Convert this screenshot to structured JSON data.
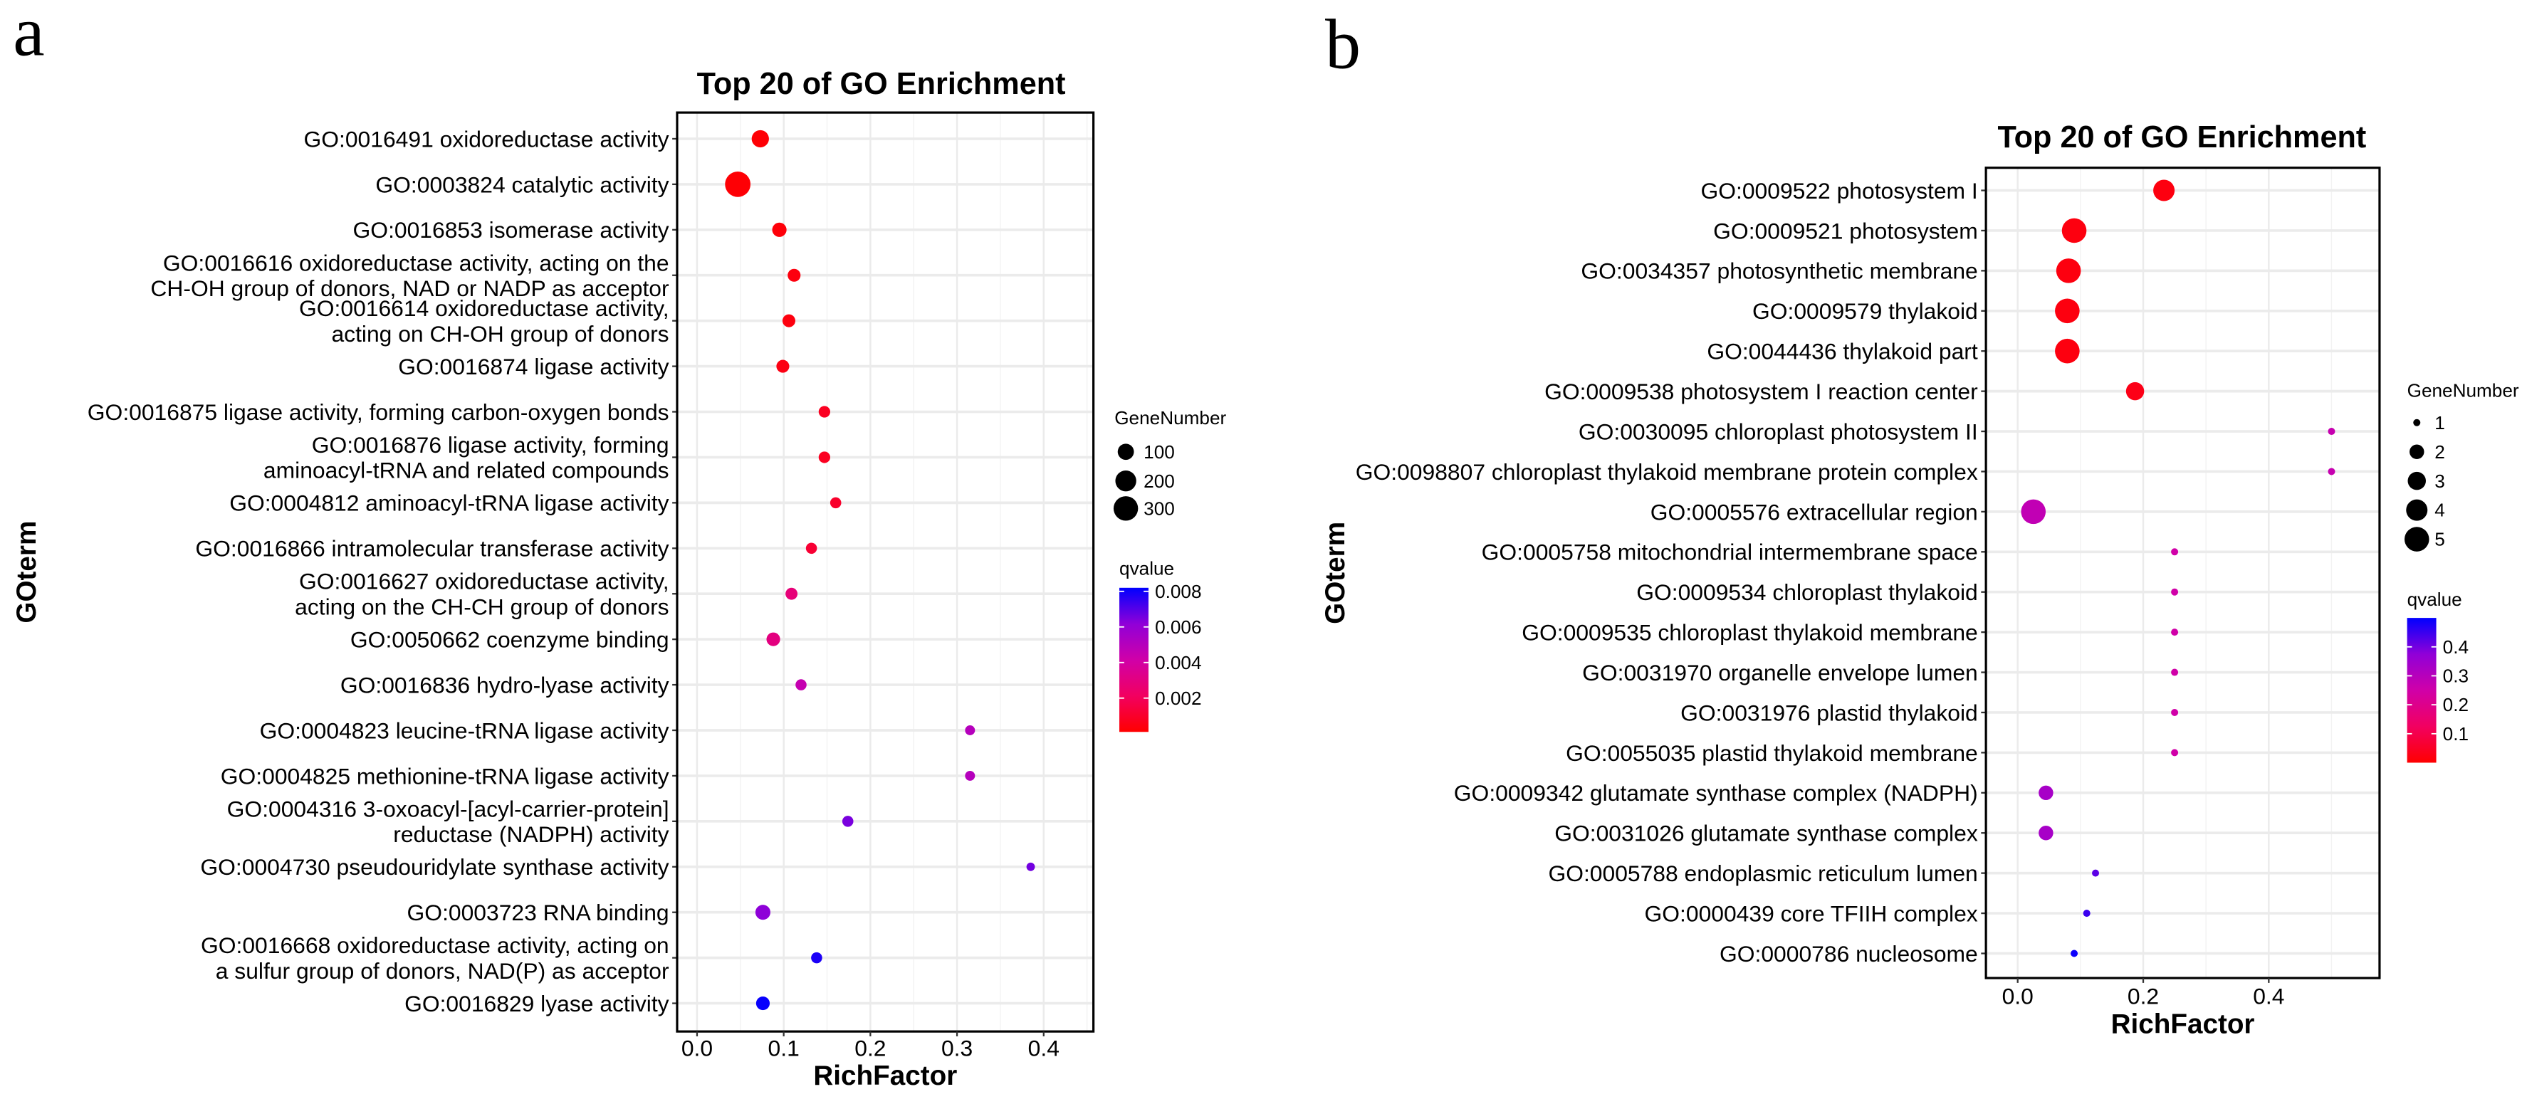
{
  "chart_data": [
    {
      "panel": "a",
      "type": "scatter",
      "title": "Top 20 of GO Enrichment",
      "xlabel": "RichFactor",
      "ylabel": "GOterm",
      "xlim": [
        -0.02,
        0.46
      ],
      "xticks": [
        "0.0",
        "0.1",
        "0.2",
        "0.3",
        "0.4"
      ],
      "xtick_values": [
        0,
        0.1,
        0.2,
        0.3,
        0.4
      ],
      "grid": true,
      "size_legend": {
        "title": "GeneNumber",
        "values": [
          100,
          200,
          300
        ],
        "labels": [
          "100",
          "200",
          "300"
        ]
      },
      "color_legend": {
        "title": "qvalue",
        "range": [
          0.0001,
          0.0082
        ],
        "ticks": [
          "0.008",
          "0.006",
          "0.004",
          "0.002"
        ],
        "tick_values": [
          0.008,
          0.006,
          0.004,
          0.002
        ],
        "low_color": "#FF0000",
        "high_color": "#0000FF"
      },
      "terms": [
        {
          "label": [
            "GO:0016491 oxidoreductase activity"
          ],
          "rich_factor": 0.073,
          "gene_number": 120,
          "qvalue": 0.0002
        },
        {
          "label": [
            "GO:0003824 catalytic activity"
          ],
          "rich_factor": 0.047,
          "gene_number": 330,
          "qvalue": 0.0002
        },
        {
          "label": [
            "GO:0016853 isomerase activity"
          ],
          "rich_factor": 0.095,
          "gene_number": 70,
          "qvalue": 0.0003
        },
        {
          "label": [
            "GO:0016616 oxidoreductase activity, acting on the",
            "CH-OH group of donors, NAD or NADP as acceptor"
          ],
          "rich_factor": 0.112,
          "gene_number": 50,
          "qvalue": 0.0004
        },
        {
          "label": [
            "GO:0016614 oxidoreductase activity,",
            "acting on CH-OH group of donors"
          ],
          "rich_factor": 0.106,
          "gene_number": 50,
          "qvalue": 0.0004
        },
        {
          "label": [
            "GO:0016874 ligase activity"
          ],
          "rich_factor": 0.099,
          "gene_number": 50,
          "qvalue": 0.0005
        },
        {
          "label": [
            "GO:0016875 ligase activity, forming carbon-oxygen bonds"
          ],
          "rich_factor": 0.147,
          "gene_number": 35,
          "qvalue": 0.0008
        },
        {
          "label": [
            "GO:0016876 ligase activity, forming",
            "aminoacyl-tRNA and related compounds"
          ],
          "rich_factor": 0.147,
          "gene_number": 35,
          "qvalue": 0.0008
        },
        {
          "label": [
            "GO:0004812 aminoacyl-tRNA ligase activity"
          ],
          "rich_factor": 0.16,
          "gene_number": 30,
          "qvalue": 0.001
        },
        {
          "label": [
            "GO:0016866 intramolecular transferase activity"
          ],
          "rich_factor": 0.132,
          "gene_number": 30,
          "qvalue": 0.0012
        },
        {
          "label": [
            "GO:0016627 oxidoreductase activity,",
            "acting on the CH-CH group of donors"
          ],
          "rich_factor": 0.109,
          "gene_number": 40,
          "qvalue": 0.0028
        },
        {
          "label": [
            "GO:0050662 coenzyme binding"
          ],
          "rich_factor": 0.088,
          "gene_number": 60,
          "qvalue": 0.003
        },
        {
          "label": [
            "GO:0016836 hydro-lyase activity"
          ],
          "rich_factor": 0.12,
          "gene_number": 30,
          "qvalue": 0.0045
        },
        {
          "label": [
            "GO:0004823 leucine-tRNA ligase activity"
          ],
          "rich_factor": 0.315,
          "gene_number": 20,
          "qvalue": 0.005
        },
        {
          "label": [
            "GO:0004825 methionine-tRNA ligase activity"
          ],
          "rich_factor": 0.315,
          "gene_number": 20,
          "qvalue": 0.005
        },
        {
          "label": [
            "GO:0004316 3-oxoacyl-[acyl-carrier-protein]",
            "reductase (NADPH) activity"
          ],
          "rich_factor": 0.174,
          "gene_number": 30,
          "qvalue": 0.0065
        },
        {
          "label": [
            "GO:0004730 pseudouridylate synthase activity"
          ],
          "rich_factor": 0.385,
          "gene_number": 10,
          "qvalue": 0.0066
        },
        {
          "label": [
            "GO:0003723 RNA binding"
          ],
          "rich_factor": 0.076,
          "gene_number": 80,
          "qvalue": 0.0062
        },
        {
          "label": [
            "GO:0016668 oxidoreductase activity, acting on",
            "a sulfur group of donors, NAD(P) as acceptor"
          ],
          "rich_factor": 0.138,
          "gene_number": 30,
          "qvalue": 0.0078
        },
        {
          "label": [
            "GO:0016829 lyase activity"
          ],
          "rich_factor": 0.076,
          "gene_number": 60,
          "qvalue": 0.0081
        }
      ]
    },
    {
      "panel": "b",
      "type": "scatter",
      "title": "Top 20 of GO Enrichment",
      "xlabel": "RichFactor",
      "ylabel": "GOterm",
      "xlim": [
        -0.03,
        0.57
      ],
      "xticks": [
        "0.0",
        "0.2",
        "0.4"
      ],
      "xtick_values": [
        0,
        0.2,
        0.4
      ],
      "grid": true,
      "size_legend": {
        "title": "GeneNumber",
        "values": [
          1,
          2,
          3,
          4,
          5
        ],
        "labels": [
          "1",
          "2",
          "3",
          "4",
          "5"
        ]
      },
      "color_legend": {
        "title": "qvalue",
        "range": [
          0.0,
          0.5
        ],
        "ticks": [
          "0.4",
          "0.3",
          "0.2",
          "0.1"
        ],
        "tick_values": [
          0.4,
          0.3,
          0.2,
          0.1
        ],
        "low_color": "#FF0000",
        "high_color": "#0000FF"
      },
      "terms": [
        {
          "label": [
            "GO:0009522 photosystem I"
          ],
          "rich_factor": 0.233,
          "gene_number": 4,
          "qvalue": 0.02
        },
        {
          "label": [
            "GO:0009521 photosystem"
          ],
          "rich_factor": 0.09,
          "gene_number": 5,
          "qvalue": 0.02
        },
        {
          "label": [
            "GO:0034357 photosynthetic membrane"
          ],
          "rich_factor": 0.081,
          "gene_number": 5,
          "qvalue": 0.02
        },
        {
          "label": [
            "GO:0009579 thylakoid"
          ],
          "rich_factor": 0.079,
          "gene_number": 5,
          "qvalue": 0.02
        },
        {
          "label": [
            "GO:0044436 thylakoid part"
          ],
          "rich_factor": 0.079,
          "gene_number": 5,
          "qvalue": 0.02
        },
        {
          "label": [
            "GO:0009538 photosystem I reaction center"
          ],
          "rich_factor": 0.187,
          "gene_number": 3,
          "qvalue": 0.03
        },
        {
          "label": [
            "GO:0030095 chloroplast photosystem II"
          ],
          "rich_factor": 0.5,
          "gene_number": 1,
          "qvalue": 0.27
        },
        {
          "label": [
            "GO:0098807 chloroplast thylakoid membrane protein complex"
          ],
          "rich_factor": 0.5,
          "gene_number": 1,
          "qvalue": 0.27
        },
        {
          "label": [
            "GO:0005576 extracellular region"
          ],
          "rich_factor": 0.025,
          "gene_number": 5,
          "qvalue": 0.28
        },
        {
          "label": [
            "GO:0005758 mitochondrial intermembrane space"
          ],
          "rich_factor": 0.25,
          "gene_number": 1,
          "qvalue": 0.25
        },
        {
          "label": [
            "GO:0009534 chloroplast thylakoid"
          ],
          "rich_factor": 0.25,
          "gene_number": 1,
          "qvalue": 0.25
        },
        {
          "label": [
            "GO:0009535 chloroplast thylakoid membrane"
          ],
          "rich_factor": 0.25,
          "gene_number": 1,
          "qvalue": 0.25
        },
        {
          "label": [
            "GO:0031970 organelle envelope lumen"
          ],
          "rich_factor": 0.25,
          "gene_number": 1,
          "qvalue": 0.25
        },
        {
          "label": [
            "GO:0031976 plastid thylakoid"
          ],
          "rich_factor": 0.25,
          "gene_number": 1,
          "qvalue": 0.25
        },
        {
          "label": [
            "GO:0055035 plastid thylakoid membrane"
          ],
          "rich_factor": 0.25,
          "gene_number": 1,
          "qvalue": 0.25
        },
        {
          "label": [
            "GO:0009342 glutamate synthase complex (NADPH)"
          ],
          "rich_factor": 0.045,
          "gene_number": 2,
          "qvalue": 0.33
        },
        {
          "label": [
            "GO:0031026 glutamate synthase complex"
          ],
          "rich_factor": 0.045,
          "gene_number": 2,
          "qvalue": 0.33
        },
        {
          "label": [
            "GO:0005788 endoplasmic reticulum lumen"
          ],
          "rich_factor": 0.124,
          "gene_number": 1,
          "qvalue": 0.42
        },
        {
          "label": [
            "GO:0000439 core TFIIH complex"
          ],
          "rich_factor": 0.11,
          "gene_number": 1,
          "qvalue": 0.45
        },
        {
          "label": [
            "GO:0000786 nucleosome"
          ],
          "rich_factor": 0.09,
          "gene_number": 1,
          "qvalue": 0.49
        }
      ]
    }
  ]
}
